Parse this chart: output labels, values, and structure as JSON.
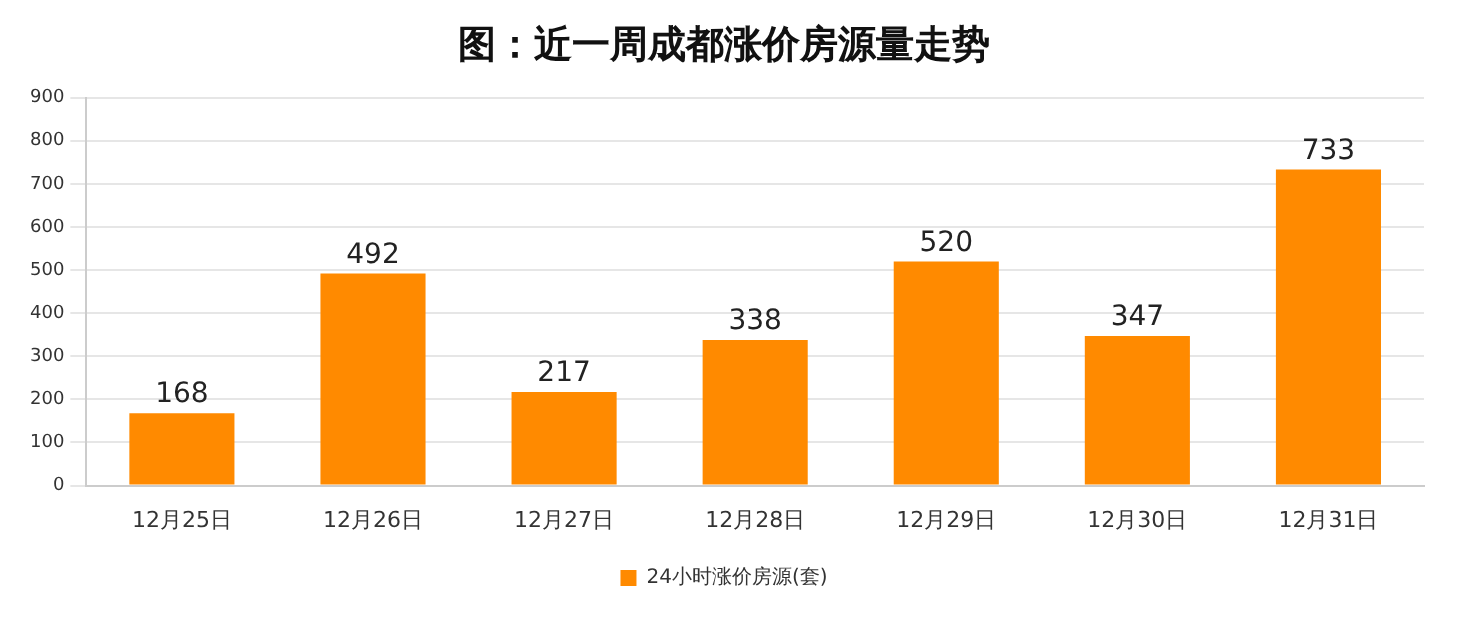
{
  "chart_data": {
    "type": "bar",
    "title": "图：近一周成都涨价房源量走势",
    "categories": [
      "12月25日",
      "12月26日",
      "12月27日",
      "12月28日",
      "12月29日",
      "12月30日",
      "12月31日"
    ],
    "series": [
      {
        "name": "24小时涨价房源(套)",
        "color": "#ff8a00",
        "values": [
          168,
          492,
          217,
          338,
          520,
          347,
          733
        ]
      }
    ],
    "ylim": [
      0,
      900
    ],
    "yticks": [
      0,
      100,
      200,
      300,
      400,
      500,
      600,
      700,
      800,
      900
    ],
    "grid": "y",
    "legend": "bottom",
    "data_labels": true
  }
}
